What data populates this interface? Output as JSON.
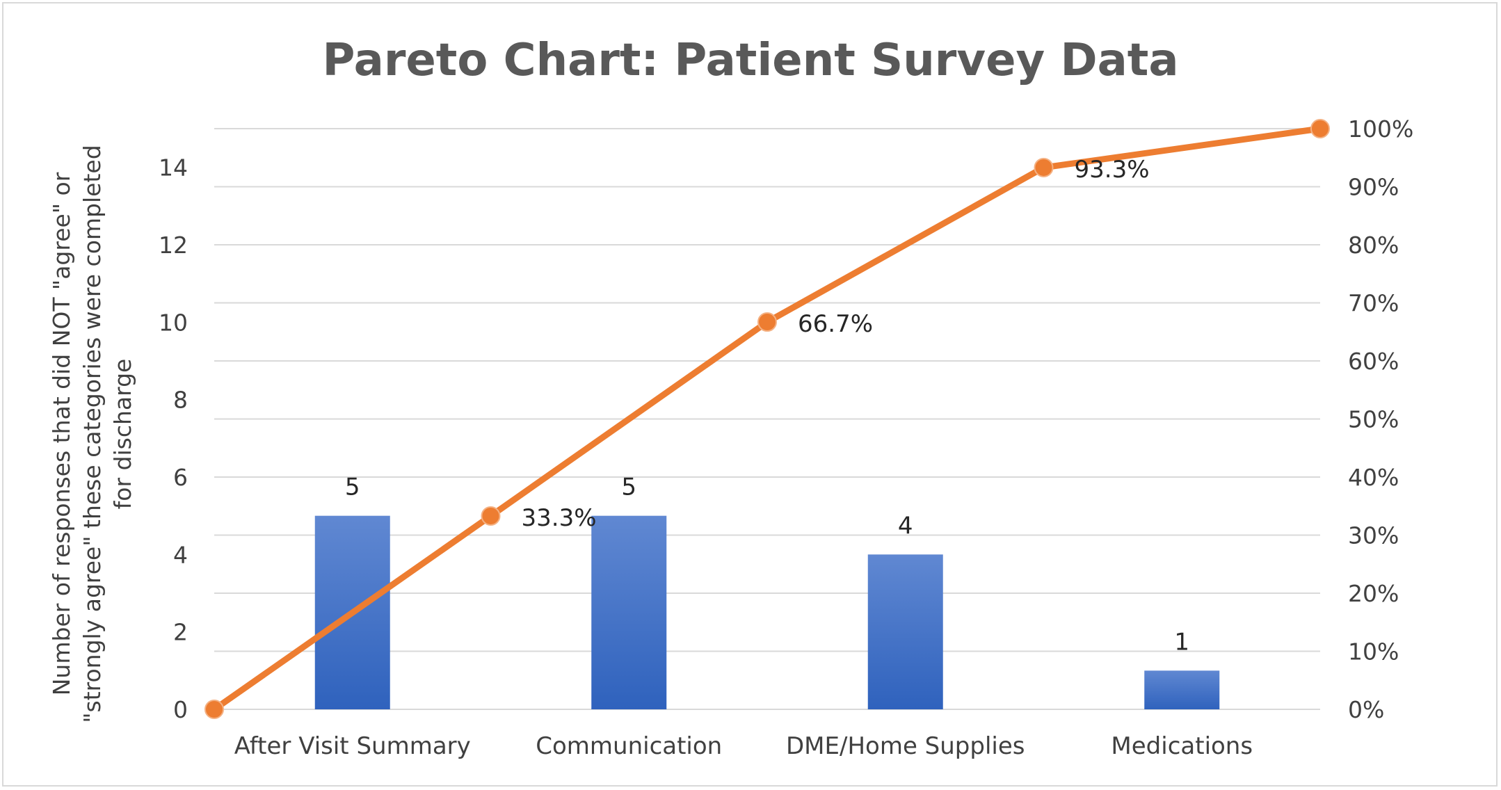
{
  "chart_data": {
    "type": "bar",
    "title": "Pareto Chart: Patient Survey Data",
    "categories": [
      "After Visit Summary",
      "Communication",
      "DME/Home Supplies",
      "Medications"
    ],
    "values": [
      5,
      5,
      4,
      1
    ],
    "ylabel_lines": [
      "Number of responses that did NOT \"agree\" or",
      "\"strongly agree\"  these categories were completed",
      "for discharge"
    ],
    "ylim": [
      0,
      15
    ],
    "yticks": [
      0,
      2,
      4,
      6,
      8,
      10,
      12,
      14
    ],
    "y2lim": [
      0,
      100
    ],
    "y2ticks": [
      "0%",
      "10%",
      "20%",
      "30%",
      "40%",
      "50%",
      "60%",
      "70%",
      "80%",
      "90%",
      "100%"
    ],
    "cumulative": {
      "type": "line",
      "x_positions": [
        0,
        1,
        2,
        3,
        4
      ],
      "values_percent": [
        0,
        33.3,
        66.7,
        93.3,
        100
      ],
      "labels": [
        "",
        "33.3%",
        "66.7%",
        "93.3%",
        ""
      ]
    },
    "grid": true,
    "legend": "none",
    "colors": {
      "bar": "#4472c4",
      "bar_light": "#5b85d1",
      "line": "#ed7d31",
      "grid": "#d9d9d9",
      "text": "#404040"
    }
  }
}
